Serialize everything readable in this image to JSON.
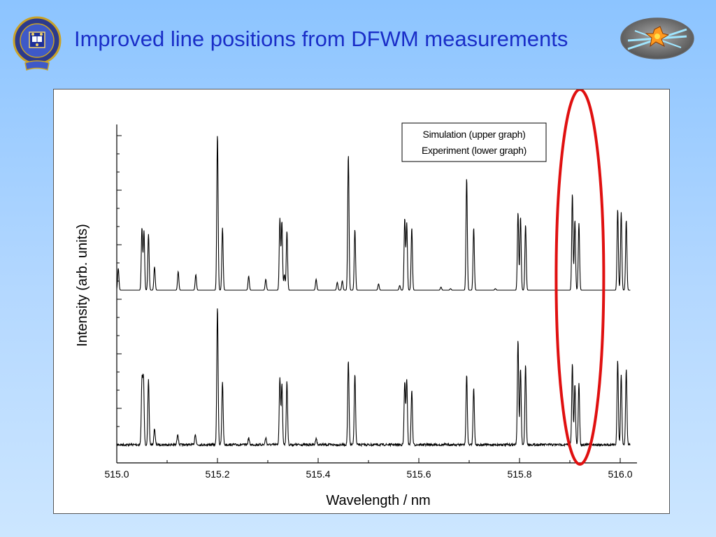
{
  "slide": {
    "title": "Improved line positions from DFWM measurements",
    "crest_icon": "university-crest-icon",
    "emblem_icon": "molecule-laser-emblem-icon",
    "title_color": "#1a2ec8"
  },
  "chart_data": {
    "type": "line",
    "xlabel": "Wavelength / nm",
    "ylabel": "Intensity (arb. units)",
    "xlim": [
      515.0,
      516.02
    ],
    "x_ticks": [
      "515.0",
      "515.2",
      "515.4",
      "515.6",
      "515.8",
      "516.0"
    ],
    "y_ticks_labeled": false,
    "legend": {
      "entries": [
        "Simulation  (upper graph)",
        "Experiment (lower graph)"
      ],
      "placement": "top-right"
    },
    "highlight": {
      "shape": "ellipse",
      "color": "#e01010",
      "x_center": 515.92
    },
    "series": [
      {
        "name": "Simulation  (upper graph)",
        "baseline": 0,
        "peaks": [
          [
            515.003,
            0.14
          ],
          [
            515.05,
            0.4
          ],
          [
            515.054,
            0.38
          ],
          [
            515.063,
            0.36
          ],
          [
            515.075,
            0.15
          ],
          [
            515.122,
            0.12
          ],
          [
            515.157,
            0.1
          ],
          [
            515.2,
            1.0
          ],
          [
            515.21,
            0.4
          ],
          [
            515.262,
            0.09
          ],
          [
            515.296,
            0.07
          ],
          [
            515.324,
            0.46
          ],
          [
            515.328,
            0.44
          ],
          [
            515.333,
            0.1
          ],
          [
            515.338,
            0.38
          ],
          [
            515.396,
            0.07
          ],
          [
            515.438,
            0.05
          ],
          [
            515.448,
            0.06
          ],
          [
            515.46,
            0.87
          ],
          [
            515.473,
            0.39
          ],
          [
            515.52,
            0.04
          ],
          [
            515.562,
            0.03
          ],
          [
            515.572,
            0.46
          ],
          [
            515.576,
            0.43
          ],
          [
            515.586,
            0.4
          ],
          [
            515.644,
            0.02
          ],
          [
            515.663,
            0.01
          ],
          [
            515.695,
            0.72
          ],
          [
            515.709,
            0.4
          ],
          [
            515.752,
            0.01
          ],
          [
            515.797,
            0.5
          ],
          [
            515.802,
            0.47
          ],
          [
            515.812,
            0.42
          ],
          [
            515.905,
            0.62
          ],
          [
            515.91,
            0.45
          ],
          [
            515.918,
            0.43
          ],
          [
            515.995,
            0.52
          ],
          [
            516.002,
            0.5
          ],
          [
            516.012,
            0.45
          ]
        ]
      },
      {
        "name": "Experiment (lower graph)",
        "baseline": 0,
        "peaks": [
          [
            515.05,
            0.46
          ],
          [
            515.053,
            0.48
          ],
          [
            515.063,
            0.47
          ],
          [
            515.075,
            0.12
          ],
          [
            515.121,
            0.08
          ],
          [
            515.156,
            0.08
          ],
          [
            515.2,
            1.0
          ],
          [
            515.21,
            0.46
          ],
          [
            515.262,
            0.05
          ],
          [
            515.296,
            0.05
          ],
          [
            515.324,
            0.49
          ],
          [
            515.328,
            0.44
          ],
          [
            515.338,
            0.46
          ],
          [
            515.396,
            0.05
          ],
          [
            515.46,
            0.61
          ],
          [
            515.473,
            0.52
          ],
          [
            515.572,
            0.46
          ],
          [
            515.576,
            0.48
          ],
          [
            515.586,
            0.4
          ],
          [
            515.695,
            0.51
          ],
          [
            515.709,
            0.42
          ],
          [
            515.797,
            0.77
          ],
          [
            515.802,
            0.55
          ],
          [
            515.812,
            0.58
          ],
          [
            515.905,
            0.59
          ],
          [
            515.91,
            0.44
          ],
          [
            515.918,
            0.45
          ],
          [
            515.995,
            0.62
          ],
          [
            516.002,
            0.51
          ],
          [
            516.012,
            0.55
          ]
        ]
      }
    ]
  }
}
